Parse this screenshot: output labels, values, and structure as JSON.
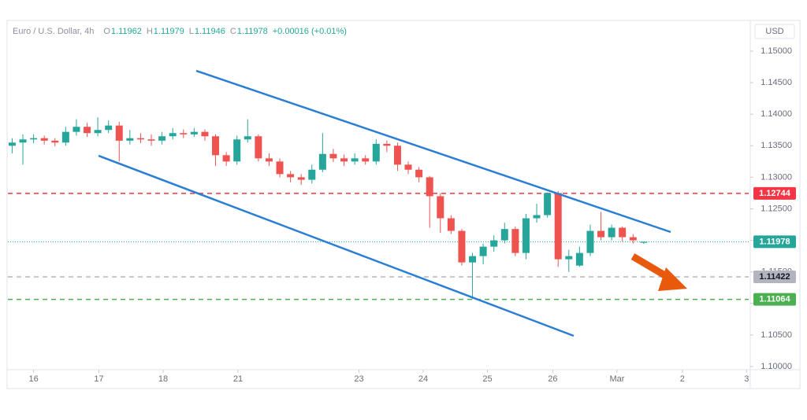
{
  "chart_data": {
    "type": "candlestick",
    "symbol": "Euro / U.S. Dollar, 4h",
    "ohlc_labels": [
      "O",
      "H",
      "L",
      "C"
    ],
    "change": "+0.00016 (+0.01%)",
    "axis_unit": "USD",
    "up_color": "#26a69a",
    "down_color": "#ef5350",
    "x": [
      0,
      1,
      2,
      3,
      4,
      5,
      6,
      7,
      8,
      9,
      10,
      11,
      12,
      13,
      14,
      15,
      16,
      17,
      18,
      19,
      20,
      21,
      22,
      23,
      24,
      25,
      26,
      27,
      28,
      29,
      30,
      31,
      32,
      33,
      34,
      35,
      36,
      37,
      38,
      39,
      40,
      41,
      42,
      43,
      44,
      45,
      46,
      47,
      48,
      49,
      50,
      51,
      52,
      53,
      54,
      55,
      56,
      57,
      58,
      59
    ],
    "open": [
      1.135,
      1.1355,
      1.136,
      1.1362,
      1.1358,
      1.1355,
      1.1372,
      1.138,
      1.137,
      1.1375,
      1.1382,
      1.1358,
      1.1362,
      1.136,
      1.1358,
      1.1365,
      1.137,
      1.1368,
      1.1372,
      1.1365,
      1.1335,
      1.1325,
      1.136,
      1.1365,
      1.133,
      1.1325,
      1.1305,
      1.13,
      1.1296,
      1.1312,
      1.1337,
      1.133,
      1.1325,
      1.133,
      1.1325,
      1.1353,
      1.135,
      1.132,
      1.1312,
      1.13,
      1.127,
      1.1235,
      1.1215,
      1.1165,
      1.1175,
      1.119,
      1.12,
      1.1218,
      1.118,
      1.1235,
      1.124,
      1.1275,
      1.117,
      1.116,
      1.118,
      1.1215,
      1.1205,
      1.122,
      1.1205,
      1.11962
    ],
    "high": [
      1.1362,
      1.1368,
      1.1368,
      1.1366,
      1.1362,
      1.138,
      1.1392,
      1.1386,
      1.1395,
      1.139,
      1.1388,
      1.1375,
      1.137,
      1.1368,
      1.1372,
      1.1378,
      1.1376,
      1.1378,
      1.1376,
      1.1368,
      1.134,
      1.1366,
      1.1392,
      1.1368,
      1.1338,
      1.133,
      1.131,
      1.1305,
      1.132,
      1.137,
      1.1345,
      1.1336,
      1.1338,
      1.1335,
      1.136,
      1.1358,
      1.1355,
      1.1325,
      1.1316,
      1.1302,
      1.1275,
      1.124,
      1.1218,
      1.118,
      1.1195,
      1.1208,
      1.1228,
      1.1222,
      1.1242,
      1.1258,
      1.1276,
      1.1278,
      1.1185,
      1.119,
      1.1225,
      1.1245,
      1.1225,
      1.1222,
      1.121,
      1.11979
    ],
    "low": [
      1.1338,
      1.132,
      1.1354,
      1.1352,
      1.1349,
      1.135,
      1.1366,
      1.1364,
      1.1365,
      1.137,
      1.1325,
      1.1352,
      1.1354,
      1.135,
      1.1352,
      1.136,
      1.1362,
      1.1364,
      1.1358,
      1.1318,
      1.1318,
      1.132,
      1.1355,
      1.1325,
      1.1318,
      1.13,
      1.1292,
      1.1288,
      1.129,
      1.1308,
      1.1324,
      1.1318,
      1.132,
      1.132,
      1.132,
      1.134,
      1.131,
      1.1305,
      1.1292,
      1.122,
      1.1212,
      1.121,
      1.116,
      1.1107,
      1.1162,
      1.1182,
      1.1195,
      1.1175,
      1.117,
      1.1228,
      1.1236,
      1.1158,
      1.115,
      1.1158,
      1.1175,
      1.12,
      1.12,
      1.1198,
      1.1195,
      1.11946
    ],
    "close": [
      1.1355,
      1.136,
      1.1362,
      1.1358,
      1.1355,
      1.1372,
      1.138,
      1.137,
      1.1375,
      1.1382,
      1.1358,
      1.1362,
      1.136,
      1.1358,
      1.1365,
      1.137,
      1.1368,
      1.1372,
      1.1365,
      1.1335,
      1.1325,
      1.136,
      1.1365,
      1.133,
      1.1325,
      1.1305,
      1.13,
      1.1296,
      1.1312,
      1.1337,
      1.133,
      1.1325,
      1.133,
      1.1325,
      1.1353,
      1.135,
      1.132,
      1.1312,
      1.13,
      1.127,
      1.1235,
      1.1215,
      1.1165,
      1.1175,
      1.119,
      1.12,
      1.1218,
      1.118,
      1.1235,
      1.124,
      1.1275,
      1.117,
      1.1175,
      1.118,
      1.1215,
      1.1205,
      1.122,
      1.1205,
      1.12,
      1.11978
    ],
    "xlim": [
      -0.4,
      68.8
    ],
    "xticks": [
      {
        "value": 2,
        "label": "16"
      },
      {
        "value": 8.1,
        "label": "17"
      },
      {
        "value": 14.1,
        "label": "18"
      },
      {
        "value": 21.1,
        "label": "21"
      },
      {
        "value": 32.4,
        "label": "23"
      },
      {
        "value": 38.4,
        "label": "24"
      },
      {
        "value": 44.4,
        "label": "25"
      },
      {
        "value": 50.5,
        "label": "26"
      },
      {
        "value": 56.5,
        "label": "Mar"
      },
      {
        "value": 62.6,
        "label": "2"
      },
      {
        "value": 68.6,
        "label": "3"
      }
    ],
    "ylim": [
      1.0995,
      1.15461
    ],
    "yticks": [
      {
        "value": 1.1,
        "label": "1.10000"
      },
      {
        "value": 1.105,
        "label": "1.10500"
      },
      {
        "value": 1.11,
        "label": "1.11000"
      },
      {
        "value": 1.115,
        "label": "1.11500"
      },
      {
        "value": 1.12,
        "label": "1.12000"
      },
      {
        "value": 1.125,
        "label": "1.12500"
      },
      {
        "value": 1.13,
        "label": "1.13000"
      },
      {
        "value": 1.135,
        "label": "1.13500"
      },
      {
        "value": 1.14,
        "label": "1.14000"
      },
      {
        "value": 1.145,
        "label": "1.14500"
      },
      {
        "value": 1.15,
        "label": "1.15000"
      }
    ],
    "levels": [
      {
        "value": 1.12744,
        "color": "#f23645"
      },
      {
        "value": 1.11422,
        "color": "#b2b5be"
      },
      {
        "value": 1.11064,
        "color": "#4caf50"
      }
    ],
    "current_color": "#26a69a"
  }
}
